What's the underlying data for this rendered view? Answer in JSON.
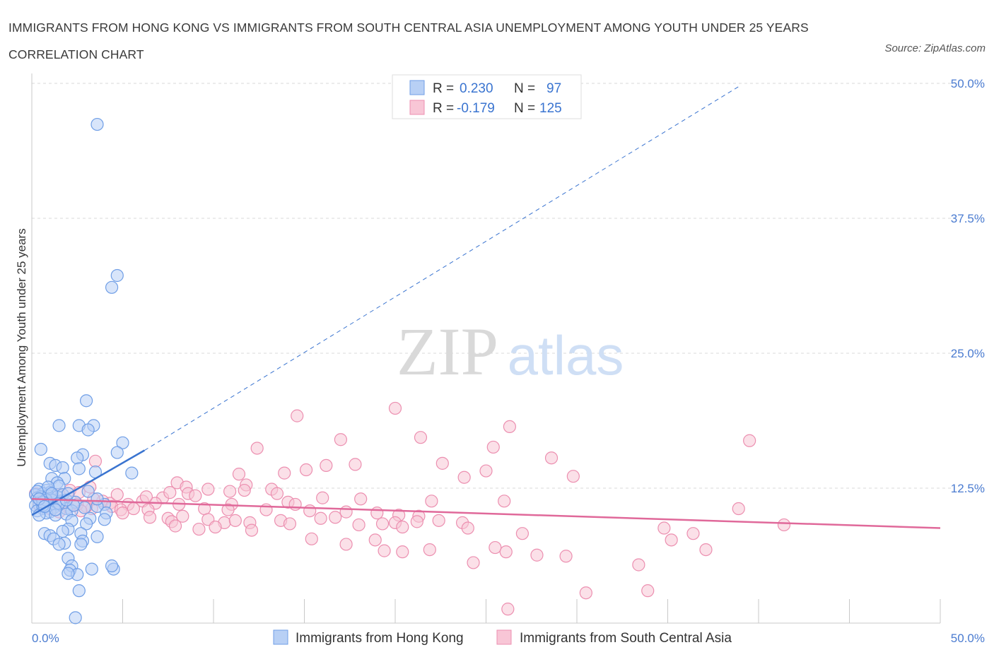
{
  "header": {
    "title": "IMMIGRANTS FROM HONG KONG VS IMMIGRANTS FROM SOUTH CENTRAL ASIA UNEMPLOYMENT AMONG YOUTH UNDER 25 YEARS CORRELATION CHART",
    "source": "Source: ZipAtlas.com"
  },
  "watermark": {
    "zip": "ZIP",
    "atlas": "atlas"
  },
  "legend": {
    "rows": [
      {
        "r_label": "R = ",
        "r_value": "0.230",
        "n_label": "N = ",
        "n_value": "97"
      },
      {
        "r_label": "R = ",
        "r_value": "-0.179",
        "n_label": "N = ",
        "n_value": "125"
      }
    ]
  },
  "colors": {
    "hk_fill": "#b8d0f5",
    "hk_stroke": "#6f9ee6",
    "hk_line": "#3a74d0",
    "sca_fill": "#f8c6d6",
    "sca_stroke": "#ec8fb0",
    "sca_line": "#e0699a",
    "tick_text": "#4a7bd0",
    "grid": "#d8d8d8"
  },
  "chart_data": {
    "type": "scatter",
    "title": "IMMIGRANTS FROM HONG KONG VS IMMIGRANTS FROM SOUTH CENTRAL ASIA UNEMPLOYMENT AMONG YOUTH UNDER 25 YEARS CORRELATION CHART",
    "xlabel": "",
    "ylabel": "Unemployment Among Youth under 25 years",
    "xlim": [
      0,
      50
    ],
    "ylim": [
      0,
      50
    ],
    "x_tick_labels": [
      "0.0%",
      "50.0%"
    ],
    "y_tick_labels": [
      "12.5%",
      "25.0%",
      "37.5%",
      "50.0%"
    ],
    "y_ticks": [
      12.5,
      25.0,
      37.5,
      50.0
    ],
    "grid": true,
    "legend_position": "top-center",
    "series": [
      {
        "name": "Immigrants from Hong Kong",
        "R": 0.23,
        "N": 97,
        "trend": {
          "solid": [
            [
              0,
              10.0
            ],
            [
              6.2,
              16.0
            ]
          ],
          "dashed": [
            [
              6.2,
              16.0
            ],
            [
              39,
              49.8
            ]
          ]
        },
        "points": [
          [
            3.6,
            46.2
          ],
          [
            4.7,
            32.2
          ],
          [
            4.4,
            31.1
          ],
          [
            3.0,
            20.6
          ],
          [
            2.6,
            18.3
          ],
          [
            3.4,
            18.3
          ],
          [
            3.1,
            17.9
          ],
          [
            1.5,
            18.3
          ],
          [
            0.5,
            16.1
          ],
          [
            5.0,
            16.7
          ],
          [
            4.7,
            15.8
          ],
          [
            2.8,
            15.6
          ],
          [
            2.5,
            15.3
          ],
          [
            1.0,
            14.8
          ],
          [
            1.3,
            14.6
          ],
          [
            1.7,
            14.4
          ],
          [
            2.6,
            14.3
          ],
          [
            3.5,
            14.0
          ],
          [
            5.5,
            13.9
          ],
          [
            1.1,
            13.4
          ],
          [
            1.8,
            13.4
          ],
          [
            1.4,
            13.0
          ],
          [
            1.5,
            12.7
          ],
          [
            0.4,
            12.4
          ],
          [
            0.8,
            12.3
          ],
          [
            3.1,
            12.2
          ],
          [
            1.0,
            12.1
          ],
          [
            0.6,
            12.0
          ],
          [
            0.2,
            11.9
          ],
          [
            0.9,
            11.8
          ],
          [
            1.4,
            11.7
          ],
          [
            0.3,
            11.6
          ],
          [
            0.7,
            11.5
          ],
          [
            1.1,
            11.4
          ],
          [
            0.5,
            11.3
          ],
          [
            1.6,
            11.3
          ],
          [
            2.4,
            11.2
          ],
          [
            0.9,
            11.1
          ],
          [
            0.4,
            11.0
          ],
          [
            1.3,
            11.0
          ],
          [
            0.2,
            10.9
          ],
          [
            0.8,
            10.8
          ],
          [
            1.2,
            10.7
          ],
          [
            0.6,
            10.6
          ],
          [
            1.9,
            10.6
          ],
          [
            2.9,
            10.7
          ],
          [
            4.0,
            11.0
          ],
          [
            0.3,
            10.4
          ],
          [
            1.0,
            10.3
          ],
          [
            2.2,
            10.4
          ],
          [
            0.8,
            10.2
          ],
          [
            3.6,
            10.8
          ],
          [
            4.1,
            10.2
          ],
          [
            0.4,
            10.0
          ],
          [
            1.3,
            10.0
          ],
          [
            1.9,
            10.1
          ],
          [
            3.2,
            9.7
          ],
          [
            2.2,
            9.5
          ],
          [
            4.0,
            9.6
          ],
          [
            3.0,
            9.2
          ],
          [
            2.0,
            8.7
          ],
          [
            1.7,
            8.5
          ],
          [
            0.7,
            8.3
          ],
          [
            1.0,
            8.1
          ],
          [
            2.7,
            8.3
          ],
          [
            3.6,
            8.0
          ],
          [
            1.2,
            7.8
          ],
          [
            2.8,
            7.6
          ],
          [
            1.8,
            7.4
          ],
          [
            1.5,
            7.3
          ],
          [
            2.7,
            7.3
          ],
          [
            2.0,
            6.0
          ],
          [
            2.2,
            5.3
          ],
          [
            3.3,
            5.0
          ],
          [
            4.5,
            5.0
          ],
          [
            4.4,
            5.3
          ],
          [
            2.1,
            4.9
          ],
          [
            2.5,
            4.5
          ],
          [
            2.0,
            4.6
          ],
          [
            2.6,
            3.0
          ],
          [
            2.4,
            0.5
          ],
          [
            0.6,
            10.9
          ],
          [
            1.7,
            11.9
          ],
          [
            0.9,
            12.6
          ],
          [
            2.3,
            10.9
          ],
          [
            3.6,
            11.5
          ],
          [
            0.5,
            11.7
          ],
          [
            1.5,
            11.1
          ],
          [
            0.3,
            12.2
          ],
          [
            0.8,
            11.4
          ],
          [
            1.1,
            12.0
          ],
          [
            0.6,
            11.2
          ],
          [
            1.9,
            11.4
          ],
          [
            0.4,
            11.5
          ],
          [
            1.3,
            10.5
          ],
          [
            2.0,
            12.0
          ],
          [
            0.7,
            10.8
          ]
        ]
      },
      {
        "name": "Immigrants from South Central Asia",
        "R": -0.179,
        "N": 125,
        "trend": {
          "solid": [
            [
              0,
              11.5
            ],
            [
              50,
              8.8
            ]
          ]
        },
        "points": [
          [
            20.0,
            19.9
          ],
          [
            14.6,
            19.2
          ],
          [
            26.3,
            18.2
          ],
          [
            21.4,
            17.2
          ],
          [
            17.0,
            17.0
          ],
          [
            39.5,
            16.9
          ],
          [
            12.4,
            16.2
          ],
          [
            25.4,
            16.3
          ],
          [
            28.6,
            15.3
          ],
          [
            22.6,
            14.8
          ],
          [
            16.2,
            14.6
          ],
          [
            17.8,
            14.7
          ],
          [
            15.1,
            14.2
          ],
          [
            25.0,
            14.1
          ],
          [
            23.8,
            13.5
          ],
          [
            13.9,
            13.9
          ],
          [
            11.4,
            13.8
          ],
          [
            29.8,
            13.6
          ],
          [
            8.0,
            13.0
          ],
          [
            8.5,
            12.6
          ],
          [
            11.8,
            12.8
          ],
          [
            11.7,
            12.3
          ],
          [
            9.7,
            12.4
          ],
          [
            13.2,
            12.4
          ],
          [
            13.5,
            12.0
          ],
          [
            10.9,
            12.2
          ],
          [
            8.6,
            12.0
          ],
          [
            7.2,
            11.6
          ],
          [
            16.0,
            11.6
          ],
          [
            18.1,
            11.5
          ],
          [
            22.0,
            11.3
          ],
          [
            26.0,
            11.3
          ],
          [
            14.1,
            11.2
          ],
          [
            14.5,
            11.0
          ],
          [
            11.0,
            11.0
          ],
          [
            8.1,
            11.0
          ],
          [
            6.8,
            11.1
          ],
          [
            6.1,
            11.3
          ],
          [
            5.3,
            11.0
          ],
          [
            4.3,
            11.1
          ],
          [
            3.9,
            11.3
          ],
          [
            4.4,
            10.8
          ],
          [
            5.6,
            10.6
          ],
          [
            6.4,
            10.5
          ],
          [
            4.9,
            10.5
          ],
          [
            3.3,
            10.6
          ],
          [
            3.0,
            10.8
          ],
          [
            2.5,
            11.0
          ],
          [
            1.8,
            11.2
          ],
          [
            1.2,
            11.4
          ],
          [
            0.8,
            11.6
          ],
          [
            0.5,
            11.7
          ],
          [
            0.2,
            12.0
          ],
          [
            2.1,
            12.3
          ],
          [
            2.6,
            12.1
          ],
          [
            1.5,
            11.9
          ],
          [
            9.5,
            10.6
          ],
          [
            10.8,
            10.5
          ],
          [
            12.9,
            10.5
          ],
          [
            15.3,
            10.4
          ],
          [
            17.3,
            10.3
          ],
          [
            19.0,
            10.2
          ],
          [
            20.2,
            10.0
          ],
          [
            21.3,
            9.9
          ],
          [
            22.4,
            9.5
          ],
          [
            23.7,
            9.3
          ],
          [
            13.7,
            9.5
          ],
          [
            15.9,
            9.7
          ],
          [
            9.7,
            9.6
          ],
          [
            10.6,
            9.3
          ],
          [
            11.2,
            9.5
          ],
          [
            12.0,
            9.3
          ],
          [
            7.5,
            9.7
          ],
          [
            6.5,
            9.8
          ],
          [
            7.7,
            9.4
          ],
          [
            8.3,
            9.9
          ],
          [
            18.0,
            9.1
          ],
          [
            19.3,
            9.2
          ],
          [
            20.0,
            9.3
          ],
          [
            20.4,
            8.9
          ],
          [
            21.2,
            9.4
          ],
          [
            24.0,
            8.8
          ],
          [
            27.0,
            8.3
          ],
          [
            34.8,
            8.8
          ],
          [
            36.4,
            8.3
          ],
          [
            38.9,
            10.6
          ],
          [
            41.4,
            9.1
          ],
          [
            12.1,
            8.6
          ],
          [
            10.1,
            8.9
          ],
          [
            15.4,
            7.8
          ],
          [
            17.3,
            7.3
          ],
          [
            18.9,
            7.7
          ],
          [
            19.4,
            6.7
          ],
          [
            20.4,
            6.6
          ],
          [
            21.9,
            6.8
          ],
          [
            25.5,
            7.0
          ],
          [
            26.1,
            6.6
          ],
          [
            35.2,
            7.7
          ],
          [
            37.1,
            6.8
          ],
          [
            24.3,
            5.6
          ],
          [
            27.8,
            6.3
          ],
          [
            29.4,
            6.2
          ],
          [
            33.4,
            5.4
          ],
          [
            30.5,
            2.8
          ],
          [
            33.9,
            3.0
          ],
          [
            26.2,
            1.3
          ],
          [
            7.9,
            9.0
          ],
          [
            9.2,
            8.7
          ],
          [
            5.0,
            10.2
          ],
          [
            2.0,
            10.7
          ],
          [
            0.4,
            10.9
          ],
          [
            1.0,
            10.6
          ],
          [
            3.4,
            11.5
          ],
          [
            16.7,
            9.8
          ],
          [
            14.2,
            9.2
          ],
          [
            3.2,
            12.6
          ],
          [
            3.5,
            15.0
          ],
          [
            7.6,
            12.1
          ],
          [
            9.0,
            11.8
          ],
          [
            6.3,
            11.7
          ],
          [
            1.5,
            10.3
          ],
          [
            2.7,
            10.4
          ],
          [
            4.7,
            11.9
          ]
        ]
      }
    ]
  }
}
